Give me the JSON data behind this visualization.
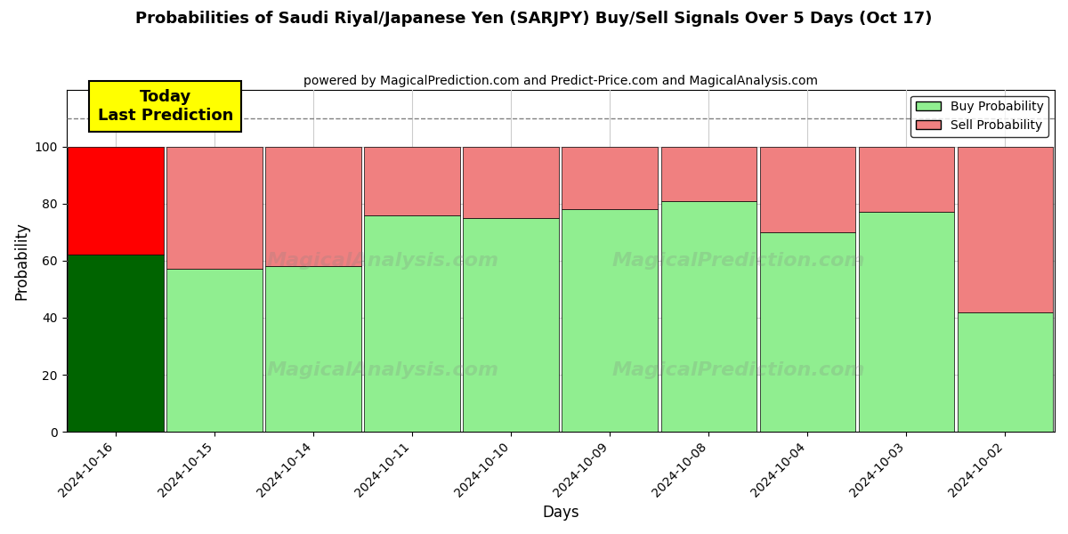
{
  "title": "Probabilities of Saudi Riyal/Japanese Yen (SARJPY) Buy/Sell Signals Over 5 Days (Oct 17)",
  "subtitle": "powered by MagicalPrediction.com and Predict-Price.com and MagicalAnalysis.com",
  "xlabel": "Days",
  "ylabel": "Probability",
  "categories": [
    "2024-10-16",
    "2024-10-15",
    "2024-10-14",
    "2024-10-11",
    "2024-10-10",
    "2024-10-09",
    "2024-10-08",
    "2024-10-04",
    "2024-10-03",
    "2024-10-02"
  ],
  "buy_values": [
    62,
    57,
    58,
    76,
    75,
    78,
    81,
    70,
    77,
    42
  ],
  "sell_values": [
    38,
    43,
    42,
    24,
    25,
    22,
    19,
    30,
    23,
    58
  ],
  "today_buy_color": "#006400",
  "today_sell_color": "#FF0000",
  "normal_buy_color": "#90EE90",
  "normal_sell_color": "#F08080",
  "today_annotation": "Today\nLast Prediction",
  "today_annotation_bg": "#FFFF00",
  "ylim": [
    0,
    120
  ],
  "yticks": [
    0,
    20,
    40,
    60,
    80,
    100
  ],
  "dashed_line_y": 110,
  "background_color": "#ffffff",
  "grid_color": "#cccccc"
}
